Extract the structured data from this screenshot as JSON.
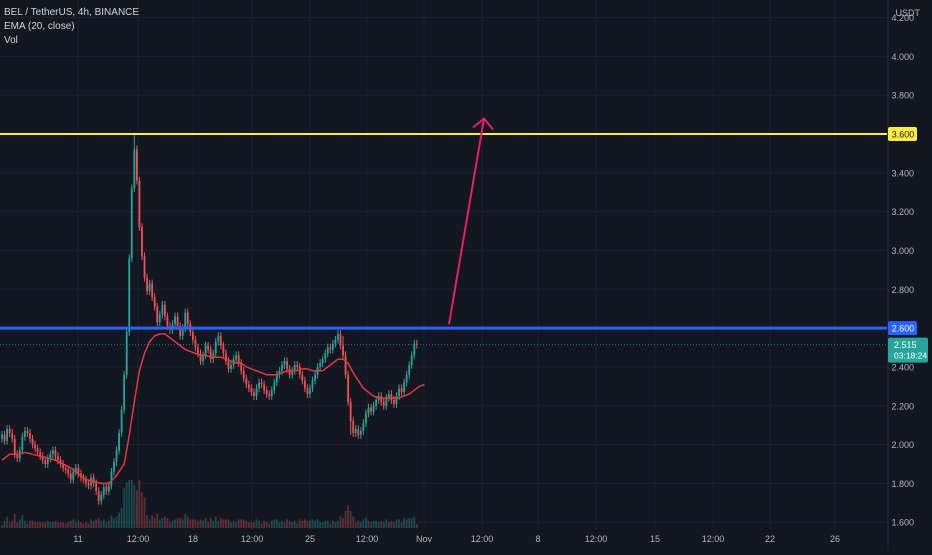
{
  "header": {
    "symbol_line": "BEL / TetherUS, 4h, BINANCE",
    "ema_label": "EMA (20, close)",
    "vol_label": "Vol"
  },
  "axis": {
    "currency": "USDT"
  },
  "price_tag": {
    "value": "2.515",
    "countdown": "03:18:24"
  },
  "colors": {
    "background": "#131722",
    "up": "#26a69a",
    "down": "#ef5350",
    "ema": "#e53935",
    "resistance_line": "#ffeb3b",
    "support_line": "#2962ff",
    "arrow": "#e91e63"
  },
  "chart_data": {
    "type": "candlestick",
    "title": "BEL / TetherUS, 4h, BINANCE",
    "ylim": [
      1.56,
      4.28
    ],
    "y_ticks": [
      "1.600",
      "1.800",
      "2.000",
      "2.200",
      "2.400",
      "2.600",
      "2.800",
      "3.000",
      "3.200",
      "3.400",
      "3.600",
      "3.800",
      "4.000",
      "4.200"
    ],
    "x_ticks": [
      "11",
      "12:00",
      "18",
      "12:00",
      "25",
      "12:00",
      "Nov",
      "12:00",
      "8",
      "12:00",
      "15",
      "12:00",
      "22",
      "26"
    ],
    "horizontal_lines": [
      {
        "value": 3.6,
        "label": "3.600"
      },
      {
        "value": 2.6,
        "label": "2.600"
      }
    ],
    "last_price": 2.515,
    "arrow": {
      "from": 2.62,
      "to": 3.68
    },
    "close_series": [
      2.05,
      2.02,
      2.08,
      2.06,
      2.03,
      1.95,
      1.93,
      1.97,
      2.04,
      2.07,
      2.06,
      2.03,
      2.0,
      1.98,
      1.96,
      1.94,
      1.92,
      1.9,
      1.93,
      1.95,
      1.97,
      1.94,
      1.92,
      1.9,
      1.88,
      1.87,
      1.85,
      1.82,
      1.86,
      1.88,
      1.85,
      1.83,
      1.82,
      1.8,
      1.79,
      1.83,
      1.8,
      1.76,
      1.71,
      1.74,
      1.78,
      1.76,
      1.79,
      1.86,
      1.91,
      1.97,
      2.06,
      2.18,
      2.36,
      2.58,
      2.96,
      3.32,
      3.52,
      3.36,
      3.12,
      2.97,
      2.86,
      2.79,
      2.83,
      2.76,
      2.71,
      2.63,
      2.67,
      2.72,
      2.66,
      2.61,
      2.59,
      2.62,
      2.66,
      2.61,
      2.56,
      2.6,
      2.68,
      2.62,
      2.58,
      2.54,
      2.5,
      2.47,
      2.43,
      2.46,
      2.51,
      2.49,
      2.44,
      2.47,
      2.53,
      2.56,
      2.51,
      2.47,
      2.43,
      2.39,
      2.41,
      2.44,
      2.46,
      2.42,
      2.38,
      2.34,
      2.31,
      2.29,
      2.27,
      2.25,
      2.29,
      2.32,
      2.31,
      2.28,
      2.26,
      2.25,
      2.28,
      2.32,
      2.36,
      2.38,
      2.41,
      2.43,
      2.39,
      2.36,
      2.38,
      2.41,
      2.4,
      2.36,
      2.33,
      2.29,
      2.26,
      2.29,
      2.33,
      2.36,
      2.4,
      2.42,
      2.44,
      2.47,
      2.5,
      2.49,
      2.52,
      2.54,
      2.57,
      2.51,
      2.46,
      2.36,
      2.22,
      2.12,
      2.06,
      2.08,
      2.05,
      2.07,
      2.11,
      2.16,
      2.19,
      2.17,
      2.2,
      2.23,
      2.25,
      2.22,
      2.2,
      2.24,
      2.26,
      2.23,
      2.21,
      2.25,
      2.29,
      2.27,
      2.32,
      2.36,
      2.41,
      2.46,
      2.52,
      2.515
    ],
    "ema_points": [
      [
        0,
        1.92
      ],
      [
        3,
        1.95
      ],
      [
        6,
        1.95
      ],
      [
        9,
        1.96
      ],
      [
        12,
        1.95
      ],
      [
        15,
        1.94
      ],
      [
        18,
        1.93
      ],
      [
        21,
        1.92
      ],
      [
        24,
        1.9
      ],
      [
        27,
        1.88
      ],
      [
        30,
        1.85
      ],
      [
        33,
        1.82
      ],
      [
        36,
        1.81
      ],
      [
        39,
        1.8
      ],
      [
        42,
        1.8
      ],
      [
        45,
        1.84
      ],
      [
        48,
        1.9
      ],
      [
        50,
        2.05
      ],
      [
        52,
        2.22
      ],
      [
        54,
        2.38
      ],
      [
        56,
        2.47
      ],
      [
        58,
        2.53
      ],
      [
        60,
        2.56
      ],
      [
        62,
        2.57
      ],
      [
        64,
        2.57
      ],
      [
        66,
        2.55
      ],
      [
        68,
        2.53
      ],
      [
        70,
        2.51
      ],
      [
        72,
        2.49
      ],
      [
        74,
        2.48
      ],
      [
        76,
        2.47
      ],
      [
        78,
        2.46
      ],
      [
        80,
        2.46
      ],
      [
        82,
        2.45
      ],
      [
        84,
        2.45
      ],
      [
        86,
        2.45
      ],
      [
        88,
        2.44
      ],
      [
        90,
        2.43
      ],
      [
        92,
        2.42
      ],
      [
        94,
        2.42
      ],
      [
        96,
        2.4
      ],
      [
        98,
        2.39
      ],
      [
        100,
        2.38
      ],
      [
        102,
        2.37
      ],
      [
        104,
        2.36
      ],
      [
        106,
        2.36
      ],
      [
        108,
        2.36
      ],
      [
        110,
        2.37
      ],
      [
        112,
        2.38
      ],
      [
        114,
        2.38
      ],
      [
        116,
        2.38
      ],
      [
        118,
        2.39
      ],
      [
        120,
        2.39
      ],
      [
        122,
        2.38
      ],
      [
        124,
        2.38
      ],
      [
        126,
        2.38
      ],
      [
        128,
        2.4
      ],
      [
        130,
        2.42
      ],
      [
        132,
        2.44
      ],
      [
        134,
        2.44
      ],
      [
        136,
        2.42
      ],
      [
        138,
        2.37
      ],
      [
        140,
        2.33
      ],
      [
        142,
        2.29
      ],
      [
        144,
        2.27
      ],
      [
        146,
        2.25
      ],
      [
        148,
        2.24
      ],
      [
        150,
        2.24
      ],
      [
        152,
        2.24
      ],
      [
        154,
        2.24
      ],
      [
        156,
        2.24
      ],
      [
        158,
        2.25
      ],
      [
        160,
        2.26
      ],
      [
        162,
        2.28
      ],
      [
        164,
        2.3
      ],
      [
        166,
        2.31
      ]
    ]
  }
}
